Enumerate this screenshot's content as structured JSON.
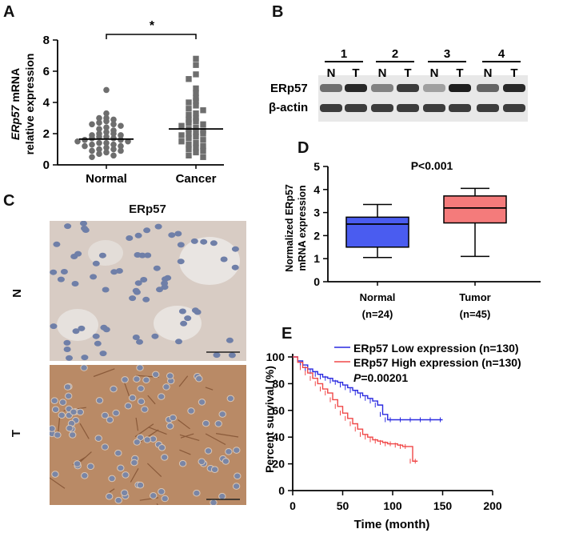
{
  "panels": {
    "A": {
      "letter": "A",
      "ylabel_italic": "ERp57",
      "ylabel_rest": " mRNA",
      "ylabel2": "relative expression",
      "significance": "*",
      "ticks": [
        "0",
        "2",
        "4",
        "6",
        "8"
      ]
    },
    "B": {
      "letter": "B",
      "lanes": [
        "1",
        "2",
        "3",
        "4"
      ],
      "lane_letters": [
        "N",
        "T",
        "N",
        "T",
        "N",
        "T",
        "N",
        "T"
      ],
      "row_labels": [
        "ERp57",
        "β-actin"
      ],
      "band_intensity": {
        "ERp57": [
          0.55,
          0.9,
          0.45,
          0.8,
          0.3,
          0.95,
          0.6,
          0.9
        ],
        "beta_actin": [
          0.8,
          0.8,
          0.8,
          0.8,
          0.8,
          0.8,
          0.8,
          0.8
        ]
      }
    },
    "C": {
      "letter": "C",
      "title": "ERp57",
      "row_labels": [
        "N",
        "T"
      ],
      "colors": {
        "normal_bg": "#d8ccc4",
        "tumor_bg": "#b98a66",
        "nucleus": "#6f7fa8"
      }
    },
    "D": {
      "letter": "D",
      "ylabel1": "Normalized ERp57",
      "ylabel2": "mRNA expression",
      "pvalue": "P<0.001",
      "ticks": [
        "0",
        "1",
        "2",
        "3",
        "4",
        "5"
      ],
      "categories": [
        {
          "label": "Normal",
          "n": "(n=24)",
          "color": "#4a5cf0"
        },
        {
          "label": "Tumor",
          "n": "(n=45)",
          "color": "#f47b7b"
        }
      ]
    },
    "E": {
      "letter": "E",
      "ylabel": "Percent survival (%)",
      "xlabel": "Time (month)",
      "xticks": [
        "0",
        "50",
        "100",
        "150",
        "200"
      ],
      "yticks": [
        "0",
        "20",
        "40",
        "60",
        "80",
        "100"
      ],
      "legend_low": "ERp57 Low expression (n=130)",
      "legend_high": "ERp57 High expression (n=130)",
      "p_italic": "P",
      "p_rest": "=0.00201",
      "colors": {
        "low": "#2a2ae0",
        "high": "#f04848"
      }
    }
  },
  "chart_data": [
    {
      "type": "scatter",
      "panel": "A",
      "categories": [
        "Normal",
        "Cancer"
      ],
      "ylabel": "ERp57 mRNA relative expression",
      "ylim": [
        0,
        8
      ],
      "series": [
        {
          "name": "Normal",
          "mean": 1.65,
          "values": [
            4.8,
            3.3,
            3.0,
            3.0,
            2.9,
            2.8,
            2.7,
            2.6,
            2.6,
            2.5,
            2.4,
            2.3,
            2.2,
            2.1,
            2.0,
            2.0,
            1.9,
            1.9,
            1.8,
            1.8,
            1.7,
            1.7,
            1.6,
            1.6,
            1.5,
            1.5,
            1.4,
            1.4,
            1.3,
            1.3,
            1.2,
            1.2,
            1.1,
            1.0,
            1.0,
            0.9,
            0.9,
            0.8,
            0.7,
            0.6,
            0.5
          ]
        },
        {
          "name": "Cancer",
          "mean": 2.3,
          "values": [
            6.8,
            6.4,
            5.8,
            5.5,
            4.9,
            4.6,
            4.3,
            4.1,
            4.0,
            3.8,
            3.6,
            3.5,
            3.3,
            3.2,
            3.0,
            2.9,
            2.8,
            2.7,
            2.6,
            2.5,
            2.4,
            2.3,
            2.2,
            2.1,
            2.0,
            2.0,
            1.9,
            1.8,
            1.7,
            1.6,
            1.5,
            1.4,
            1.3,
            1.2,
            1.1,
            1.0,
            0.9,
            0.8,
            0.6,
            0.5
          ]
        }
      ]
    },
    {
      "type": "box",
      "panel": "D",
      "categories": [
        "Normal",
        "Tumor"
      ],
      "ylabel": "Normalized ERp57 mRNA expression",
      "ylim": [
        0,
        5
      ],
      "series": [
        {
          "name": "Normal",
          "min": 1.05,
          "q1": 1.5,
          "median": 2.5,
          "q3": 2.8,
          "max": 3.35
        },
        {
          "name": "Tumor",
          "min": 1.1,
          "q1": 2.55,
          "median": 3.2,
          "q3": 3.72,
          "max": 4.05
        }
      ]
    },
    {
      "type": "line",
      "panel": "E",
      "xlabel": "Time (month)",
      "ylabel": "Percent survival (%)",
      "xlim": [
        0,
        200
      ],
      "ylim": [
        0,
        100
      ],
      "series": [
        {
          "name": "ERp57 Low expression (n=130)",
          "x": [
            0,
            5,
            10,
            15,
            20,
            25,
            30,
            35,
            40,
            45,
            50,
            55,
            60,
            65,
            70,
            75,
            80,
            85,
            90,
            95,
            100,
            110,
            120,
            130,
            140,
            150
          ],
          "y": [
            100,
            97,
            94,
            91,
            89,
            87,
            85,
            84,
            82,
            81,
            79,
            77,
            75,
            73,
            71,
            69,
            67,
            64,
            57,
            53,
            53,
            53,
            53,
            53,
            53,
            53
          ]
        },
        {
          "name": "ERp57 High expression (n=130)",
          "x": [
            0,
            5,
            10,
            15,
            20,
            25,
            30,
            35,
            40,
            45,
            50,
            55,
            60,
            65,
            70,
            75,
            80,
            85,
            90,
            95,
            100,
            105,
            110,
            115,
            120,
            125
          ],
          "y": [
            100,
            96,
            92,
            88,
            84,
            80,
            76,
            73,
            68,
            63,
            58,
            54,
            50,
            46,
            42,
            40,
            38,
            37,
            36,
            35,
            35,
            34,
            33,
            33,
            22,
            22
          ]
        }
      ]
    }
  ]
}
